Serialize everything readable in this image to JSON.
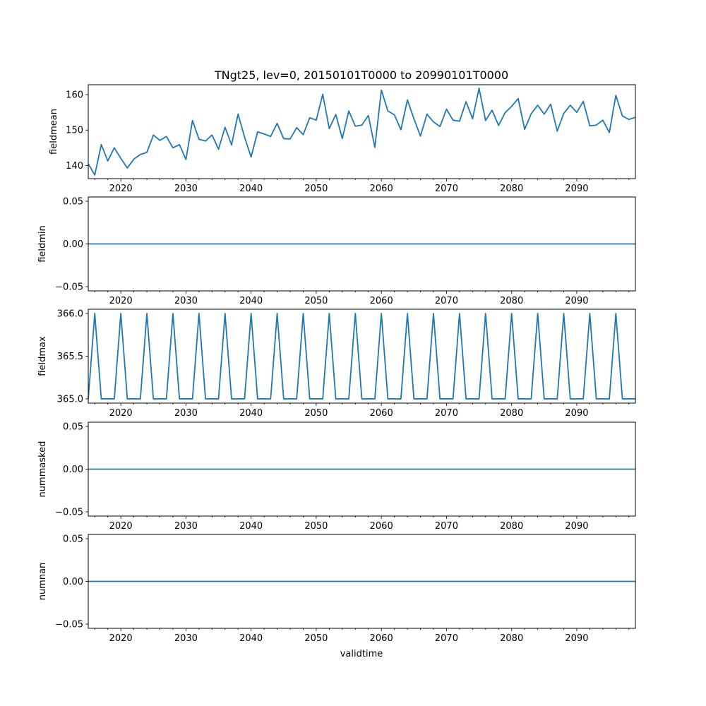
{
  "chart_title": "TNgt25, lev=0, 20150101T0000 to 20990101T0000",
  "x_axis_label": "validtime",
  "line_color": "#1f77b4",
  "chart_data": {
    "type": "line",
    "title": "TNgt25, lev=0, 20150101T0000 to 20990101T0000",
    "xlabel": "validtime",
    "x": [
      2015,
      2016,
      2017,
      2018,
      2019,
      2020,
      2021,
      2022,
      2023,
      2024,
      2025,
      2026,
      2027,
      2028,
      2029,
      2030,
      2031,
      2032,
      2033,
      2034,
      2035,
      2036,
      2037,
      2038,
      2039,
      2040,
      2041,
      2042,
      2043,
      2044,
      2045,
      2046,
      2047,
      2048,
      2049,
      2050,
      2051,
      2052,
      2053,
      2054,
      2055,
      2056,
      2057,
      2058,
      2059,
      2060,
      2061,
      2062,
      2063,
      2064,
      2065,
      2066,
      2067,
      2068,
      2069,
      2070,
      2071,
      2072,
      2073,
      2074,
      2075,
      2076,
      2077,
      2078,
      2079,
      2080,
      2081,
      2082,
      2083,
      2084,
      2085,
      2086,
      2087,
      2088,
      2089,
      2090,
      2091,
      2092,
      2093,
      2094,
      2095,
      2096,
      2097,
      2098,
      2099
    ],
    "xlim": [
      2015,
      2099
    ],
    "xticks": [
      2020,
      2030,
      2040,
      2050,
      2060,
      2070,
      2080,
      2090
    ],
    "xtick_labels": [
      "2020",
      "2030",
      "2040",
      "2050",
      "2060",
      "2070",
      "2080",
      "2090"
    ],
    "subplots": [
      {
        "name": "fieldmean",
        "ylabel": "fieldmean",
        "ylim": [
          136.3,
          162.8
        ],
        "yticks": [
          140,
          150,
          160
        ],
        "ytick_labels": [
          "140",
          "150",
          "160"
        ],
        "values": [
          140.5,
          137.3,
          145.9,
          141.3,
          145.0,
          142.0,
          139.3,
          141.8,
          143.1,
          143.7,
          148.6,
          147.1,
          148.2,
          145.0,
          145.9,
          141.7,
          152.7,
          147.4,
          146.9,
          148.6,
          144.6,
          150.8,
          145.8,
          154.5,
          148.0,
          142.4,
          149.5,
          148.9,
          148.2,
          151.9,
          147.6,
          147.5,
          150.7,
          148.7,
          153.5,
          152.8,
          160.1,
          150.4,
          154.4,
          147.6,
          155.4,
          151.1,
          151.4,
          154.1,
          145.1,
          161.3,
          155.4,
          154.3,
          150.1,
          158.5,
          153.2,
          148.3,
          154.5,
          152.3,
          151.0,
          155.9,
          152.8,
          152.5,
          158.0,
          153.2,
          161.8,
          152.7,
          155.6,
          151.3,
          154.9,
          156.7,
          158.9,
          150.2,
          154.6,
          157.0,
          154.5,
          157.3,
          149.7,
          154.7,
          157.0,
          155.0,
          158.1,
          151.2,
          151.4,
          152.8,
          149.3,
          159.8,
          154.0,
          153.0,
          153.6
        ]
      },
      {
        "name": "fieldmin",
        "ylabel": "fieldmin",
        "ylim": [
          -0.055,
          0.055
        ],
        "yticks": [
          -0.05,
          0.0,
          0.05
        ],
        "ytick_labels": [
          "−0.05",
          "0.00",
          "0.05"
        ],
        "values": [
          0,
          0,
          0,
          0,
          0,
          0,
          0,
          0,
          0,
          0,
          0,
          0,
          0,
          0,
          0,
          0,
          0,
          0,
          0,
          0,
          0,
          0,
          0,
          0,
          0,
          0,
          0,
          0,
          0,
          0,
          0,
          0,
          0,
          0,
          0,
          0,
          0,
          0,
          0,
          0,
          0,
          0,
          0,
          0,
          0,
          0,
          0,
          0,
          0,
          0,
          0,
          0,
          0,
          0,
          0,
          0,
          0,
          0,
          0,
          0,
          0,
          0,
          0,
          0,
          0,
          0,
          0,
          0,
          0,
          0,
          0,
          0,
          0,
          0,
          0,
          0,
          0,
          0,
          0,
          0,
          0,
          0,
          0,
          0,
          0
        ]
      },
      {
        "name": "fieldmax",
        "ylabel": "fieldmax",
        "ylim": [
          364.95,
          366.05
        ],
        "yticks": [
          365.0,
          365.5,
          366.0
        ],
        "ytick_labels": [
          "365.0",
          "365.5",
          "366.0"
        ],
        "values": [
          365,
          366,
          365,
          365,
          365,
          366,
          365,
          365,
          365,
          366,
          365,
          365,
          365,
          366,
          365,
          365,
          365,
          366,
          365,
          365,
          365,
          366,
          365,
          365,
          365,
          366,
          365,
          365,
          365,
          366,
          365,
          365,
          365,
          366,
          365,
          365,
          365,
          366,
          365,
          365,
          365,
          366,
          365,
          365,
          365,
          366,
          365,
          365,
          365,
          366,
          365,
          365,
          365,
          366,
          365,
          365,
          365,
          366,
          365,
          365,
          365,
          366,
          365,
          365,
          365,
          366,
          365,
          365,
          365,
          366,
          365,
          365,
          365,
          366,
          365,
          365,
          365,
          366,
          365,
          365,
          365,
          366,
          365,
          365,
          365
        ]
      },
      {
        "name": "nummasked",
        "ylabel": "nummasked",
        "ylim": [
          -0.055,
          0.055
        ],
        "yticks": [
          -0.05,
          0.0,
          0.05
        ],
        "ytick_labels": [
          "−0.05",
          "0.00",
          "0.05"
        ],
        "values": [
          0,
          0,
          0,
          0,
          0,
          0,
          0,
          0,
          0,
          0,
          0,
          0,
          0,
          0,
          0,
          0,
          0,
          0,
          0,
          0,
          0,
          0,
          0,
          0,
          0,
          0,
          0,
          0,
          0,
          0,
          0,
          0,
          0,
          0,
          0,
          0,
          0,
          0,
          0,
          0,
          0,
          0,
          0,
          0,
          0,
          0,
          0,
          0,
          0,
          0,
          0,
          0,
          0,
          0,
          0,
          0,
          0,
          0,
          0,
          0,
          0,
          0,
          0,
          0,
          0,
          0,
          0,
          0,
          0,
          0,
          0,
          0,
          0,
          0,
          0,
          0,
          0,
          0,
          0,
          0,
          0,
          0,
          0,
          0,
          0
        ]
      },
      {
        "name": "numnan",
        "ylabel": "numnan",
        "ylim": [
          -0.055,
          0.055
        ],
        "yticks": [
          -0.05,
          0.0,
          0.05
        ],
        "ytick_labels": [
          "−0.05",
          "0.00",
          "0.05"
        ],
        "values": [
          0,
          0,
          0,
          0,
          0,
          0,
          0,
          0,
          0,
          0,
          0,
          0,
          0,
          0,
          0,
          0,
          0,
          0,
          0,
          0,
          0,
          0,
          0,
          0,
          0,
          0,
          0,
          0,
          0,
          0,
          0,
          0,
          0,
          0,
          0,
          0,
          0,
          0,
          0,
          0,
          0,
          0,
          0,
          0,
          0,
          0,
          0,
          0,
          0,
          0,
          0,
          0,
          0,
          0,
          0,
          0,
          0,
          0,
          0,
          0,
          0,
          0,
          0,
          0,
          0,
          0,
          0,
          0,
          0,
          0,
          0,
          0,
          0,
          0,
          0,
          0,
          0,
          0,
          0,
          0,
          0,
          0,
          0,
          0,
          0
        ]
      }
    ]
  }
}
